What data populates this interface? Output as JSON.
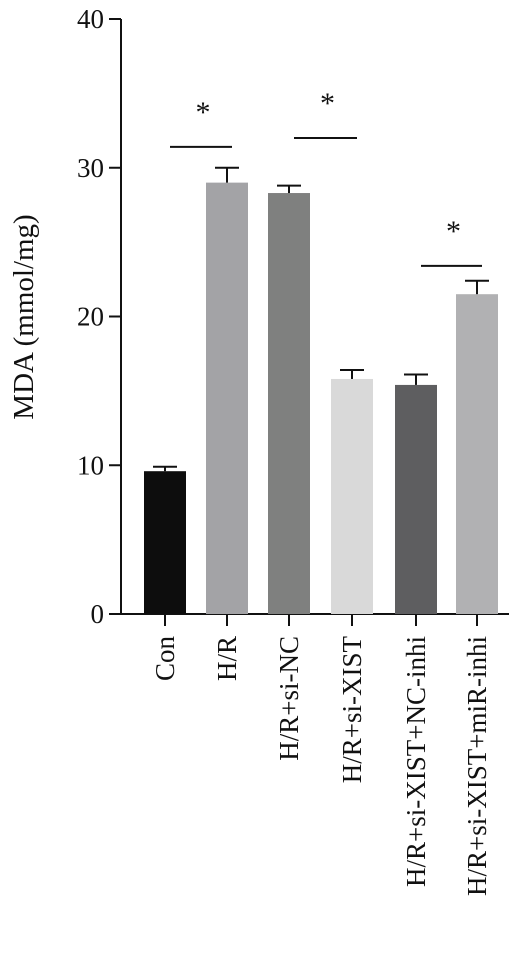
{
  "chart_data": {
    "type": "bar",
    "title": "",
    "xlabel": "",
    "ylabel": "MDA (mmol/mg)",
    "ylim": [
      0,
      40
    ],
    "yticks": [
      0,
      10,
      20,
      30,
      40
    ],
    "grid": false,
    "categories": [
      "Con",
      "H/R",
      "H/R+si-NC",
      "H/R+si-XIST",
      "H/R+si-XIST+NC-inhi",
      "H/R+si-XIST+miR-inhi"
    ],
    "values": [
      9.6,
      29.0,
      28.3,
      15.8,
      15.4,
      21.5
    ],
    "errors": [
      0.3,
      1.0,
      0.5,
      0.6,
      0.7,
      0.9
    ],
    "colors": [
      "#0d0d0d",
      "#a3a3a6",
      "#7f807f",
      "#d9d9d9",
      "#5e5e60",
      "#b1b1b3"
    ],
    "annotations": [
      {
        "text": "*",
        "from": 0,
        "to": 1,
        "y": 31.4
      },
      {
        "text": "*",
        "from": 2,
        "to": 3,
        "y": 32.0
      },
      {
        "text": "*",
        "from": 4,
        "to": 5,
        "y": 23.4
      }
    ]
  }
}
